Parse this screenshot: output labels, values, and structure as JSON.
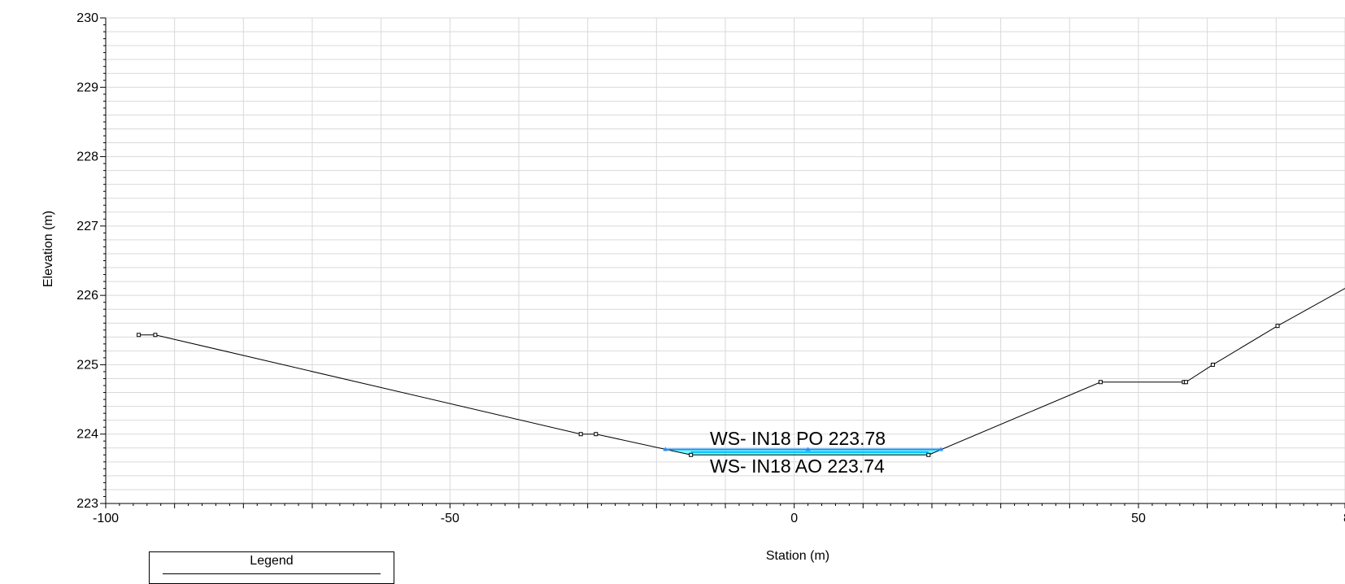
{
  "chart_data": {
    "type": "line",
    "title": "",
    "xlabel": "Station (m)",
    "ylabel": "Elevation (m)",
    "xlim": [
      -100,
      80
    ],
    "ylim": [
      223,
      230
    ],
    "x_ticks": [
      "-100",
      "-50",
      "0",
      "50",
      "8"
    ],
    "y_ticks": [
      "223",
      "224",
      "225",
      "226",
      "227",
      "228",
      "229",
      "230"
    ],
    "grid": true,
    "series": [
      {
        "values": [
          [
            -95.2,
            225.43
          ],
          [
            -92.8,
            225.43
          ],
          [
            -31,
            224.0
          ],
          [
            -28.8,
            224.0
          ],
          [
            -15,
            223.7
          ],
          [
            19.5,
            223.7
          ],
          [
            44.5,
            224.75
          ],
          [
            56.6,
            224.75
          ],
          [
            56.9,
            224.75
          ],
          [
            60.8,
            225.0
          ],
          [
            70.2,
            225.56
          ],
          [
            80,
            226.1
          ]
        ],
        "color": "#000000"
      },
      {
        "values": [
          [
            -18.7,
            223.78
          ],
          [
            2,
            223.78
          ],
          [
            21.3,
            223.78
          ]
        ],
        "color": "#1e90ff"
      },
      {
        "values": [
          [
            -15,
            223.74
          ],
          [
            19.5,
            223.74
          ]
        ],
        "color": "#00bfff"
      }
    ],
    "annotations": [
      "WS- IN18 PO 223.78",
      "WS- IN18 AO 223.74"
    ]
  },
  "legend": {
    "title": "Legend"
  },
  "colors": {
    "ground": "#000000",
    "ws_po": "#1e90ff",
    "ws_ao": "#00bfff",
    "water_fill": "#00ffff",
    "grid": "#d9d9d9"
  }
}
